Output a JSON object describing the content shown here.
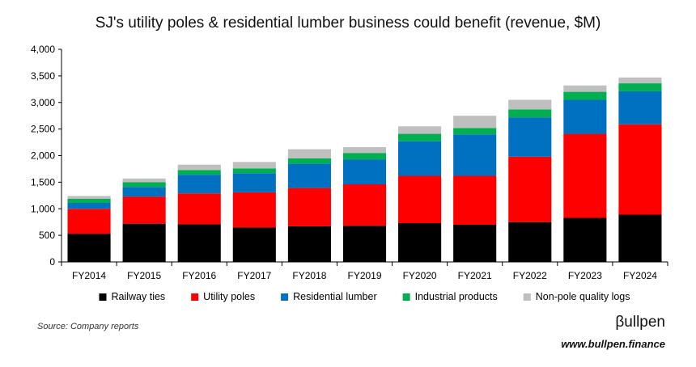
{
  "chart_data": {
    "type": "bar",
    "stacked": true,
    "title": "SJ's utility poles & residential lumber business could benefit (revenue, $M)",
    "categories": [
      "FY2014",
      "FY2015",
      "FY2016",
      "FY2017",
      "FY2018",
      "FY2019",
      "FY2020",
      "FY2021",
      "FY2022",
      "FY2023",
      "FY2024"
    ],
    "series": [
      {
        "name": "Railway ties",
        "color": "#000000",
        "values": [
          530,
          720,
          710,
          650,
          670,
          680,
          730,
          700,
          750,
          830,
          890
        ]
      },
      {
        "name": "Utility poles",
        "color": "#ff0000",
        "values": [
          470,
          510,
          580,
          660,
          720,
          780,
          890,
          920,
          1230,
          1580,
          1700
        ]
      },
      {
        "name": "Residential lumber",
        "color": "#0070c0",
        "values": [
          110,
          180,
          350,
          360,
          460,
          470,
          650,
          780,
          740,
          640,
          620
        ]
      },
      {
        "name": "Industrial products",
        "color": "#00b050",
        "values": [
          80,
          90,
          90,
          90,
          100,
          120,
          140,
          120,
          150,
          150,
          150
        ]
      },
      {
        "name": "Non-pole quality logs",
        "color": "#bfbfbf",
        "values": [
          50,
          70,
          100,
          120,
          170,
          110,
          140,
          230,
          180,
          120,
          110
        ]
      }
    ],
    "ylim": [
      0,
      4000
    ],
    "yticks": [
      "0",
      "500",
      "1,000",
      "1,500",
      "2,000",
      "2,500",
      "3,000",
      "3,500",
      "4,000"
    ],
    "ytick_values": [
      0,
      500,
      1000,
      1500,
      2000,
      2500,
      3000,
      3500,
      4000
    ],
    "legend_position": "bottom",
    "grid": false
  },
  "footer": {
    "source": "Source: Company reports",
    "brand": "βullpen",
    "url": "www.bullpen.finance"
  }
}
